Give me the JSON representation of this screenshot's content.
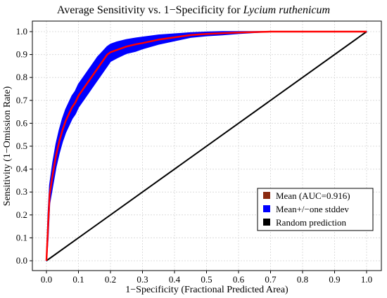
{
  "chart_data": {
    "type": "line",
    "title_prefix": "Average Sensitivity vs. 1−Specificity for ",
    "title_species": "Lycium ruthenicum",
    "xlabel": "1−Specificity (Fractional Predicted Area)",
    "ylabel": "Sensitivity (1−Omission Rate)",
    "xlim": [
      0,
      1
    ],
    "ylim": [
      0,
      1
    ],
    "xticks": [
      "0.0",
      "0.1",
      "0.2",
      "0.3",
      "0.4",
      "0.5",
      "0.6",
      "0.7",
      "0.8",
      "0.9",
      "1.0"
    ],
    "yticks": [
      "0.0",
      "0.1",
      "0.2",
      "0.3",
      "0.4",
      "0.5",
      "0.6",
      "0.7",
      "0.8",
      "0.9",
      "1.0"
    ],
    "grid": true,
    "legend_position": "bottom-right",
    "series": [
      {
        "name": "Mean (AUC=0.916)",
        "color": "#ff0000",
        "legend_color": "#8b2a10",
        "x": [
          0.0,
          0.005,
          0.01,
          0.02,
          0.03,
          0.04,
          0.05,
          0.06,
          0.07,
          0.08,
          0.09,
          0.1,
          0.11,
          0.12,
          0.13,
          0.14,
          0.15,
          0.16,
          0.17,
          0.18,
          0.19,
          0.2,
          0.22,
          0.25,
          0.28,
          0.3,
          0.35,
          0.4,
          0.45,
          0.5,
          0.55,
          0.6,
          0.65,
          0.7,
          0.8,
          0.9,
          1.0
        ],
        "y": [
          0.0,
          0.15,
          0.29,
          0.38,
          0.46,
          0.52,
          0.57,
          0.61,
          0.64,
          0.67,
          0.69,
          0.72,
          0.74,
          0.76,
          0.78,
          0.8,
          0.82,
          0.84,
          0.86,
          0.88,
          0.9,
          0.91,
          0.92,
          0.935,
          0.945,
          0.95,
          0.965,
          0.975,
          0.985,
          0.99,
          0.993,
          0.996,
          0.998,
          1.0,
          1.0,
          1.0,
          1.0
        ]
      },
      {
        "name": "Mean+/−one stddev",
        "color": "#0000ff",
        "legend_color": "#0000ff",
        "x": [
          0.0,
          0.005,
          0.01,
          0.02,
          0.03,
          0.04,
          0.05,
          0.06,
          0.07,
          0.08,
          0.09,
          0.1,
          0.11,
          0.12,
          0.13,
          0.14,
          0.15,
          0.16,
          0.17,
          0.18,
          0.19,
          0.2,
          0.22,
          0.25,
          0.28,
          0.3,
          0.35,
          0.4,
          0.45,
          0.5,
          0.55,
          0.6,
          0.65,
          0.7,
          0.8,
          0.9,
          1.0
        ],
        "upper": [
          0.0,
          0.2,
          0.33,
          0.43,
          0.51,
          0.57,
          0.62,
          0.66,
          0.69,
          0.72,
          0.74,
          0.77,
          0.79,
          0.81,
          0.83,
          0.85,
          0.87,
          0.89,
          0.905,
          0.92,
          0.935,
          0.945,
          0.955,
          0.965,
          0.972,
          0.976,
          0.985,
          0.99,
          0.995,
          0.998,
          1.0,
          1.0,
          1.0,
          1.0,
          1.0,
          1.0,
          1.0
        ],
        "lower": [
          0.0,
          0.1,
          0.25,
          0.33,
          0.41,
          0.47,
          0.52,
          0.56,
          0.59,
          0.62,
          0.64,
          0.67,
          0.69,
          0.71,
          0.73,
          0.75,
          0.77,
          0.79,
          0.81,
          0.83,
          0.85,
          0.87,
          0.885,
          0.905,
          0.915,
          0.925,
          0.945,
          0.96,
          0.975,
          0.982,
          0.986,
          0.992,
          0.996,
          1.0,
          1.0,
          1.0,
          1.0
        ]
      },
      {
        "name": "Random prediction",
        "color": "#000000",
        "legend_color": "#000000",
        "x": [
          0.0,
          1.0
        ],
        "y": [
          0.0,
          1.0
        ]
      }
    ]
  }
}
